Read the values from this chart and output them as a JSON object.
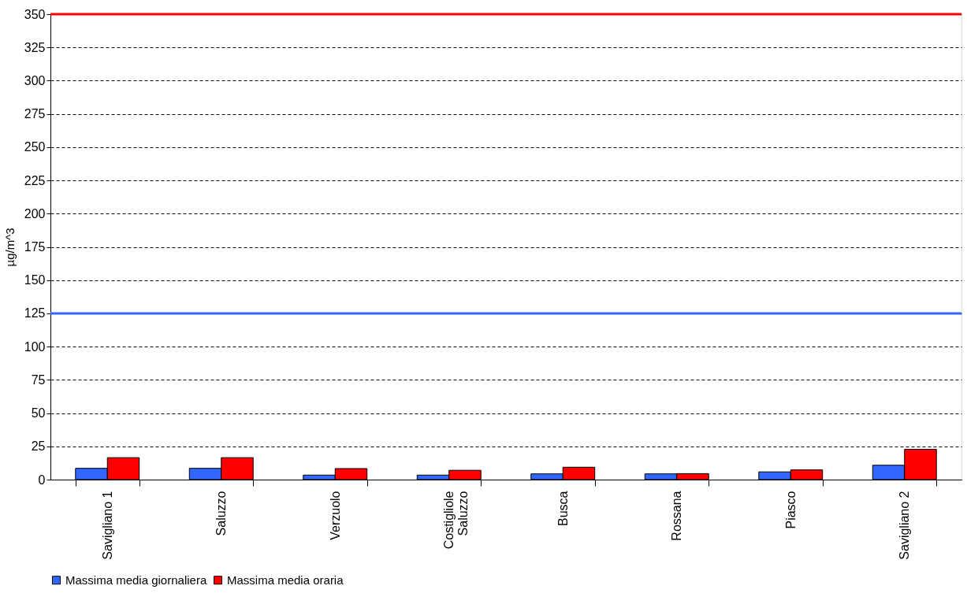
{
  "chart_data": {
    "type": "bar",
    "ylabel": "µg/m^3",
    "categories": [
      "Savigliano 1",
      "Saluzzo",
      "Verzuolo",
      "Costigliole Saluzzo",
      "Busca",
      "Rossana",
      "Piasco",
      "Savigliano 2"
    ],
    "series": [
      {
        "name": "Massima media giornaliera",
        "color": "#3366ff",
        "values": [
          8.5,
          8.5,
          3.4,
          3.4,
          4.3,
          4.3,
          5.8,
          10.8
        ]
      },
      {
        "name": "Massima media oraria",
        "color": "#ff0000",
        "values": [
          16.5,
          16.5,
          8.3,
          7.0,
          9.3,
          4.5,
          7.3,
          22.8
        ]
      }
    ],
    "ylim": [
      0,
      350
    ],
    "yticks": [
      0,
      25,
      50,
      75,
      100,
      125,
      150,
      175,
      200,
      225,
      250,
      275,
      300,
      325,
      350
    ],
    "ref_lines": [
      {
        "axis": "y",
        "value": 350,
        "color": "#ff0000"
      },
      {
        "axis": "y",
        "value": 125,
        "color": "#3366ff"
      }
    ],
    "grid": "y",
    "legend": "bottom"
  }
}
